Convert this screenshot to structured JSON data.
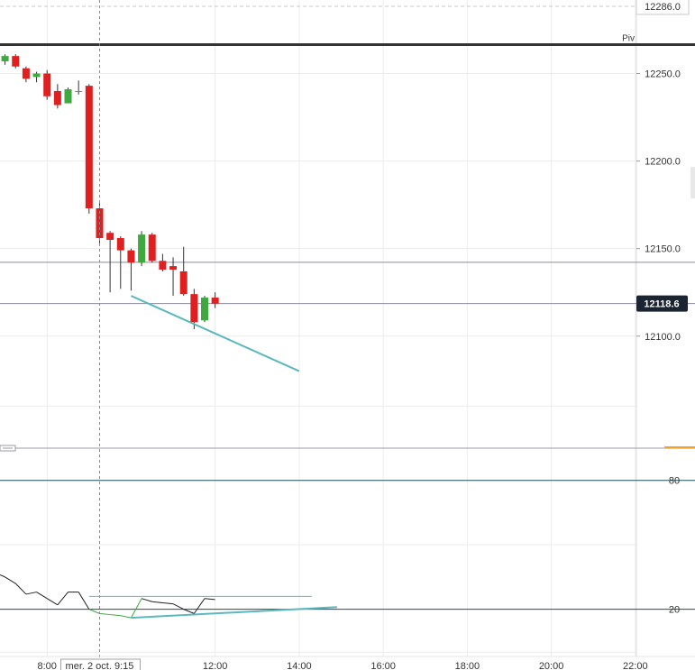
{
  "chart_data": {
    "type": "candlestick",
    "price_axis": {
      "ticks": [
        "12250.0",
        "12200.0",
        "12150.0",
        "12100.0"
      ],
      "tick_values": [
        12250,
        12200,
        12150,
        12100
      ],
      "top_value_label": "12286.0",
      "top_value": 12286,
      "last_price_label": "12118.6",
      "last_price": 12118.6,
      "ylim": [
        12036,
        12292
      ]
    },
    "pivot": {
      "label": "Piv",
      "value": 12266.5
    },
    "horizontal_levels": [
      12142.2,
      12118.6
    ],
    "time_axis": {
      "ticks": [
        "8:00",
        "12:00",
        "14:00",
        "16:00",
        "18:00",
        "20:00",
        "22:00"
      ],
      "tick_hours": [
        8,
        12,
        14,
        16,
        18,
        20,
        22
      ],
      "crosshair_label": "mer. 2 oct. 9:15",
      "crosshair_hour": 9.25,
      "xlim_hours": [
        6.88,
        23.42
      ]
    },
    "candles": [
      {
        "t": 7.0,
        "o": 12257,
        "h": 12261,
        "l": 12255,
        "c": 12260
      },
      {
        "t": 7.25,
        "o": 12260,
        "h": 12261,
        "l": 12253,
        "c": 12254
      },
      {
        "t": 7.5,
        "o": 12253,
        "h": 12254,
        "l": 12245,
        "c": 12247
      },
      {
        "t": 7.75,
        "o": 12248,
        "h": 12251,
        "l": 12245,
        "c": 12250
      },
      {
        "t": 8.0,
        "o": 12250,
        "h": 12252,
        "l": 12235,
        "c": 12237
      },
      {
        "t": 8.25,
        "o": 12240,
        "h": 12244,
        "l": 12230,
        "c": 12232
      },
      {
        "t": 8.5,
        "o": 12233,
        "h": 12242,
        "l": 12233,
        "c": 12241
      },
      {
        "t": 8.75,
        "o": 12240,
        "h": 12246,
        "l": 12238,
        "c": 12240
      },
      {
        "t": 9.0,
        "o": 12243,
        "h": 12244,
        "l": 12170,
        "c": 12173
      },
      {
        "t": 9.25,
        "o": 12173,
        "h": 12176,
        "l": 12153,
        "c": 12156
      },
      {
        "t": 9.5,
        "o": 12159,
        "h": 12160,
        "l": 12125,
        "c": 12155
      },
      {
        "t": 9.75,
        "o": 12156,
        "h": 12157,
        "l": 12127,
        "c": 12149
      },
      {
        "t": 10.0,
        "o": 12149,
        "h": 12150,
        "l": 12126,
        "c": 12142
      },
      {
        "t": 10.25,
        "o": 12142,
        "h": 12160,
        "l": 12140,
        "c": 12158
      },
      {
        "t": 10.5,
        "o": 12158,
        "h": 12159,
        "l": 12142,
        "c": 12143
      },
      {
        "t": 10.75,
        "o": 12143,
        "h": 12147,
        "l": 12137,
        "c": 12138
      },
      {
        "t": 11.0,
        "o": 12140,
        "h": 12145,
        "l": 12123,
        "c": 12138
      },
      {
        "t": 11.25,
        "o": 12137,
        "h": 12151,
        "l": 12123,
        "c": 12124
      },
      {
        "t": 11.5,
        "o": 12124,
        "h": 12127,
        "l": 12104,
        "c": 12108
      },
      {
        "t": 11.75,
        "o": 12109,
        "h": 12123,
        "l": 12108,
        "c": 12122
      },
      {
        "t": 12.0,
        "o": 12122,
        "h": 12125,
        "l": 12116,
        "c": 12118.6
      }
    ],
    "trendline_price": {
      "t1": 10.0,
      "v1": 12123,
      "t2": 14.0,
      "v2": 12080
    },
    "oscillator": {
      "ticks": [
        "80",
        "20"
      ],
      "tick_values": [
        80,
        20
      ],
      "ylim": [
        -2,
        95
      ],
      "line": [
        {
          "t": 6.88,
          "v": 36
        },
        {
          "t": 7.0,
          "v": 35
        },
        {
          "t": 7.25,
          "v": 32
        },
        {
          "t": 7.5,
          "v": 27
        },
        {
          "t": 7.75,
          "v": 28
        },
        {
          "t": 8.0,
          "v": 25
        },
        {
          "t": 8.25,
          "v": 22
        },
        {
          "t": 8.5,
          "v": 28
        },
        {
          "t": 8.75,
          "v": 28
        },
        {
          "t": 9.0,
          "v": 20
        },
        {
          "t": 9.25,
          "v": 18
        },
        {
          "t": 9.5,
          "v": 17.5
        },
        {
          "t": 9.75,
          "v": 17
        },
        {
          "t": 10.0,
          "v": 16
        },
        {
          "t": 10.25,
          "v": 25
        },
        {
          "t": 10.5,
          "v": 23.5
        },
        {
          "t": 10.75,
          "v": 23
        },
        {
          "t": 11.0,
          "v": 22.5
        },
        {
          "t": 11.25,
          "v": 20
        },
        {
          "t": 11.5,
          "v": 18
        },
        {
          "t": 11.75,
          "v": 25
        },
        {
          "t": 12.0,
          "v": 24.5
        }
      ],
      "highlight_from_t": 9.0,
      "trend_support": {
        "t1": 10.0,
        "v1": 16,
        "t2": 14.9,
        "v2": 21
      },
      "trend_resistance": {
        "t1": 9.0,
        "v1": 26,
        "t2": 14.3,
        "v2": 26
      }
    },
    "colors": {
      "bull": "#3fa83f",
      "bear": "#e02020",
      "trendline": "#5bb8bf",
      "pivot": "#333333",
      "grid": "#ececec",
      "level": "#8a8a9a",
      "badge": "#1c2431",
      "osc_level": "#1f4e5a",
      "osc_line": "#222222",
      "osc_highlight": "#3fa83f",
      "orange_mark": "#f2a12a"
    }
  }
}
